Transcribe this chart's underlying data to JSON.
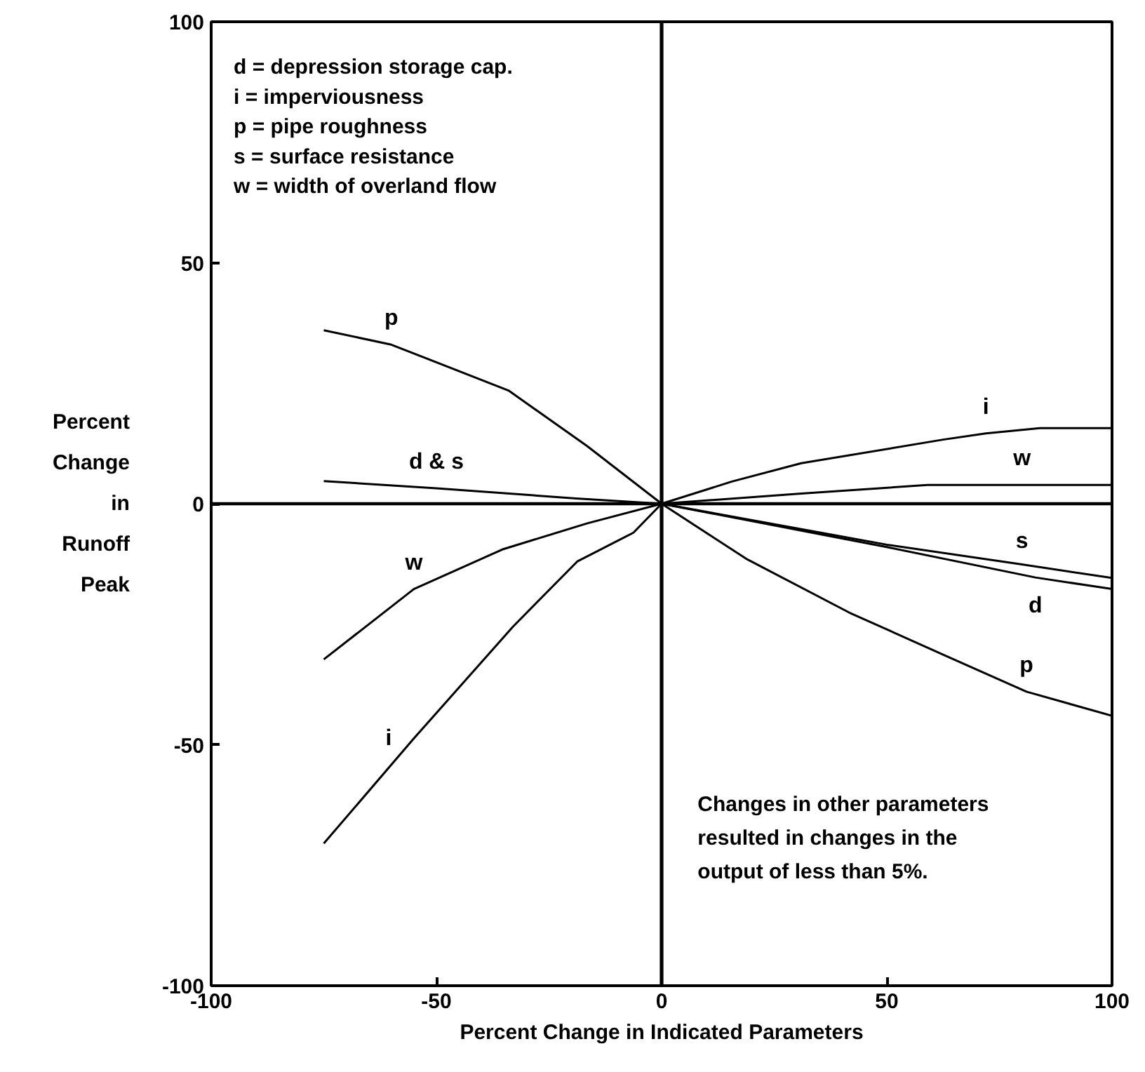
{
  "chart_data": {
    "type": "line",
    "xlabel": "Percent Change in Indicated Parameters",
    "ylabel": "Percent Change in Runoff Peak",
    "xlim": [
      -100,
      100
    ],
    "ylim": [
      -100,
      100
    ],
    "xticks": [
      -100,
      -50,
      0,
      50,
      100
    ],
    "yticks": [
      -100,
      -50,
      0,
      50,
      100
    ],
    "grid": false,
    "line_style": "solid",
    "marker": "none",
    "series": [
      {
        "color": "#000000",
        "x": [
          -75,
          -60,
          -34,
          -16.6,
          0,
          18.75,
          41.7,
          62.5,
          81,
          100
        ],
        "values": [
          36,
          33,
          23.5,
          12,
          0,
          -11.4,
          -22.6,
          -31.3,
          -39,
          -44
        ]
      },
      {
        "color": "#000000",
        "x": [
          -75,
          -55,
          -33,
          -18.75,
          -6.25,
          0,
          15.6,
          31,
          62.5,
          72,
          84,
          100
        ],
        "values": [
          -70.5,
          -48.7,
          -25.5,
          -12,
          -6,
          0,
          4.6,
          8.4,
          13.3,
          14.6,
          15.7,
          15.7
        ]
      },
      {
        "color": "#000000",
        "x": [
          -75,
          -55,
          -35.4,
          -16.6,
          0,
          31,
          59,
          80,
          100
        ],
        "values": [
          -32.3,
          -17.7,
          -9.5,
          -4.1,
          0,
          2.1,
          3.9,
          3.9,
          3.9
        ]
      },
      {
        "color": "#000000",
        "x": [
          -75,
          -50,
          -19,
          0,
          50,
          83,
          100
        ],
        "values": [
          4.7,
          3.2,
          1.1,
          0,
          -9,
          -15.3,
          -17.7
        ]
      },
      {
        "color": "#000000",
        "x": [
          0,
          50,
          80,
          100
        ],
        "values": [
          0,
          -8.5,
          -12.6,
          -15.4
        ]
      }
    ],
    "ref_lines": [
      {
        "axis": "x",
        "value": 0,
        "color": "#000000"
      },
      {
        "axis": "y",
        "value": 0,
        "color": "#000000"
      }
    ],
    "annotations": [
      "d = depression storage cap.",
      "i = imperviousness",
      "p = pipe roughness",
      "s = surface resistance",
      "w = width of overland flow",
      "Changes in other parameters resulted in changes in the output of less than 5%.",
      {
        "text": "p",
        "x": -60,
        "y": 33
      },
      {
        "text": "d & s",
        "x": -50,
        "y": 3.2
      },
      {
        "text": "w",
        "x": -55,
        "y": -17.7
      },
      {
        "text": "i",
        "x": -55,
        "y": -48.7
      },
      {
        "text": "i",
        "x": 72,
        "y": 14.6
      },
      {
        "text": "w",
        "x": 80,
        "y": 3.9
      },
      {
        "text": "s",
        "x": 80,
        "y": -12.6
      },
      {
        "text": "d",
        "x": 83,
        "y": -15.3
      },
      {
        "text": "p",
        "x": 81,
        "y": -39
      }
    ]
  }
}
